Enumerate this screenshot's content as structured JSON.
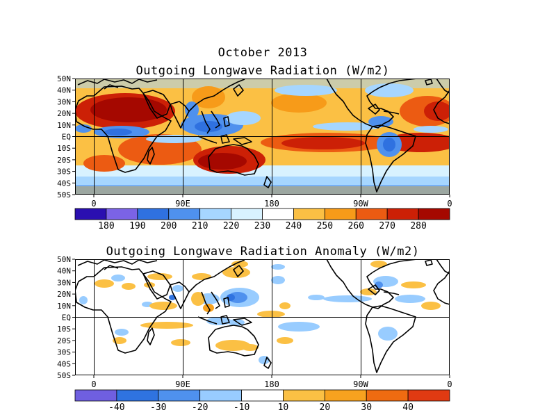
{
  "title": "October 2013",
  "panels": [
    {
      "title": "Outgoing Longwave Radiation (W/m2)",
      "lat_labels": [
        "50N",
        "40N",
        "30N",
        "20N",
        "10N",
        "EQ",
        "10S",
        "20S",
        "30S",
        "40S",
        "50S"
      ],
      "lon_labels": [
        "0",
        "90E",
        "180",
        "90W",
        "0"
      ],
      "colorbar": {
        "labels": [
          "180",
          "190",
          "200",
          "210",
          "220",
          "230",
          "240",
          "250",
          "260",
          "270",
          "280"
        ],
        "colors": [
          "#2a0fb0",
          "#7b63e6",
          "#2f71e0",
          "#4f91ee",
          "#a6d6ff",
          "#d8f2ff",
          "#ffffff",
          "#fbc044",
          "#f79b19",
          "#ec5b12",
          "#cc2006",
          "#a50800"
        ]
      }
    },
    {
      "title": "Outgoing Longwave Radiation Anomaly (W/m2)",
      "lat_labels": [
        "50N",
        "40N",
        "30N",
        "20N",
        "10N",
        "EQ",
        "10S",
        "20S",
        "30S",
        "40S",
        "50S"
      ],
      "lon_labels": [
        "0",
        "90E",
        "180",
        "90W",
        "0"
      ],
      "colorbar": {
        "labels": [
          "-40",
          "-30",
          "-20",
          "-10",
          "10",
          "20",
          "30",
          "40"
        ],
        "colors": [
          "#6f5fe0",
          "#2f73e0",
          "#4f91ee",
          "#98ccff",
          "#ffffff",
          "#fbc044",
          "#f7a21f",
          "#ef6b11",
          "#e03a12"
        ]
      }
    }
  ]
}
